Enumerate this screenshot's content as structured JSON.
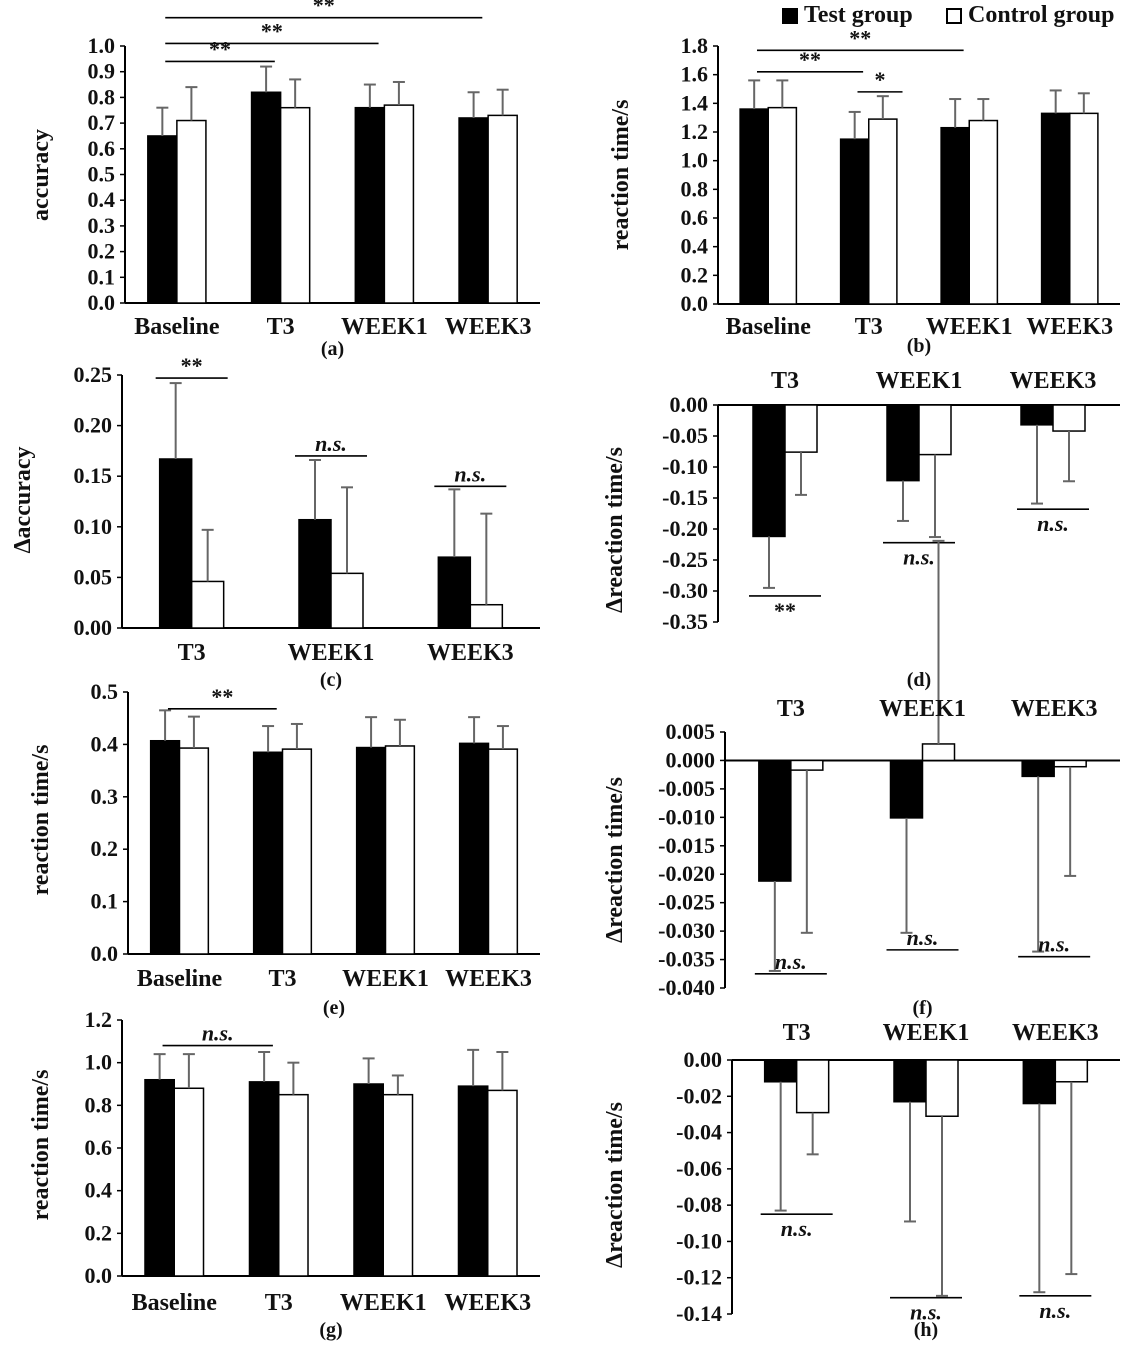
{
  "legend": {
    "test_label": "Test group",
    "control_label": "Control group",
    "test_color": "#000000",
    "control_color": "#ffffff"
  },
  "chart_data": [
    {
      "id": "a",
      "panel_label": "(a)",
      "type": "bar",
      "ylabel": "accuracy",
      "ylim": [
        0,
        1.0
      ],
      "yticks": [
        "0.0",
        "0.1",
        "0.2",
        "0.3",
        "0.4",
        "0.5",
        "0.6",
        "0.7",
        "0.8",
        "0.9",
        "1.0"
      ],
      "categories": [
        "Baseline",
        "T3",
        "WEEK1",
        "WEEK3"
      ],
      "series": [
        {
          "name": "Test group",
          "values": [
            0.65,
            0.82,
            0.76,
            0.72
          ],
          "errors": [
            0.11,
            0.1,
            0.09,
            0.1
          ]
        },
        {
          "name": "Control group",
          "values": [
            0.71,
            0.76,
            0.77,
            0.73
          ],
          "errors": [
            0.13,
            0.11,
            0.09,
            0.1
          ]
        }
      ],
      "annotations": [
        {
          "text": "**",
          "from": "Baseline",
          "to": "WEEK3",
          "y": 1.11
        },
        {
          "text": "**",
          "from": "Baseline",
          "to": "WEEK1",
          "y": 1.01
        },
        {
          "text": "**",
          "from": "Baseline",
          "to": "T3",
          "y": 0.94
        }
      ]
    },
    {
      "id": "b",
      "panel_label": "(b)",
      "type": "bar",
      "ylabel": "reaction time/s",
      "ylim": [
        0,
        1.8
      ],
      "yticks": [
        "0.0",
        "0.2",
        "0.4",
        "0.6",
        "0.8",
        "1.0",
        "1.2",
        "1.4",
        "1.6",
        "1.8"
      ],
      "categories": [
        "Baseline",
        "T3",
        "WEEK1",
        "WEEK3"
      ],
      "series": [
        {
          "name": "Test group",
          "values": [
            1.36,
            1.15,
            1.23,
            1.33
          ],
          "errors": [
            0.2,
            0.19,
            0.2,
            0.16
          ]
        },
        {
          "name": "Control group",
          "values": [
            1.37,
            1.29,
            1.28,
            1.33
          ],
          "errors": [
            0.19,
            0.16,
            0.15,
            0.14
          ]
        }
      ],
      "annotations": [
        {
          "text": "**",
          "from": "Baseline",
          "to": "WEEK1",
          "y": 1.77
        },
        {
          "text": "**",
          "from": "Baseline",
          "to": "T3",
          "y": 1.62
        },
        {
          "text": "*",
          "from": "T3",
          "to": "T3",
          "y": 1.48
        }
      ]
    },
    {
      "id": "c",
      "panel_label": "(c)",
      "type": "bar",
      "ylabel": "Δaccuracy",
      "ylim": [
        0,
        0.25
      ],
      "yticks": [
        "0.00",
        "0.05",
        "0.10",
        "0.15",
        "0.20",
        "0.25"
      ],
      "categories": [
        "T3",
        "WEEK1",
        "WEEK3"
      ],
      "series": [
        {
          "name": "Test group",
          "values": [
            0.167,
            0.107,
            0.07
          ],
          "errors": [
            0.075,
            0.059,
            0.067
          ]
        },
        {
          "name": "Control group",
          "values": [
            0.046,
            0.054,
            0.023
          ],
          "errors": [
            0.051,
            0.085,
            0.09
          ]
        }
      ],
      "annotations": [
        {
          "text": "**",
          "cat": "T3",
          "y": 0.247
        },
        {
          "text": "n.s.",
          "cat": "WEEK1",
          "y": 0.17,
          "italic": true
        },
        {
          "text": "n.s.",
          "cat": "WEEK3",
          "y": 0.14,
          "italic": true
        }
      ]
    },
    {
      "id": "d",
      "panel_label": "(d)",
      "type": "bar",
      "ylabel": "Δreaction time/s",
      "ylim": [
        -0.35,
        0.0
      ],
      "xaxis_top": true,
      "yticks": [
        "0.00",
        "-0.05",
        "-0.10",
        "-0.15",
        "-0.20",
        "-0.25",
        "-0.30",
        "-0.35"
      ],
      "categories": [
        "T3",
        "WEEK1",
        "WEEK3"
      ],
      "series": [
        {
          "name": "Test group",
          "values": [
            -0.212,
            -0.122,
            -0.032
          ],
          "errors": [
            0.083,
            0.065,
            0.127
          ]
        },
        {
          "name": "Control group",
          "values": [
            -0.076,
            -0.08,
            -0.042
          ],
          "errors": [
            0.069,
            0.133,
            0.081
          ]
        }
      ],
      "annotations": [
        {
          "text": "**",
          "cat": "T3",
          "y": -0.308
        },
        {
          "text": "n.s.",
          "cat": "WEEK1",
          "y": -0.222,
          "italic": true
        },
        {
          "text": "n.s.",
          "cat": "WEEK3",
          "y": -0.168,
          "italic": true
        }
      ]
    },
    {
      "id": "e",
      "panel_label": "(e)",
      "type": "bar",
      "ylabel": "reaction time/s",
      "ylim": [
        0,
        0.5
      ],
      "yticks": [
        "0.0",
        "0.1",
        "0.2",
        "0.3",
        "0.4",
        "0.5"
      ],
      "categories": [
        "Baseline",
        "T3",
        "WEEK1",
        "WEEK3"
      ],
      "series": [
        {
          "name": "Test group",
          "values": [
            0.407,
            0.385,
            0.394,
            0.402
          ],
          "errors": [
            0.058,
            0.05,
            0.058,
            0.05
          ]
        },
        {
          "name": "Control group",
          "values": [
            0.393,
            0.391,
            0.397,
            0.391
          ],
          "errors": [
            0.06,
            0.048,
            0.05,
            0.044
          ]
        }
      ],
      "annotations": [
        {
          "text": "**",
          "from": "Baseline",
          "to": "T3",
          "y": 0.468
        }
      ]
    },
    {
      "id": "f",
      "panel_label": "(f)",
      "type": "bar",
      "ylabel": "Δreaction time/s",
      "ylim": [
        -0.04,
        0.005
      ],
      "xaxis_top": true,
      "yticks": [
        "0.005",
        "0.000",
        "-0.005",
        "-0.010",
        "-0.015",
        "-0.020",
        "-0.025",
        "-0.030",
        "-0.035",
        "-0.040"
      ],
      "categories": [
        "T3",
        "WEEK1",
        "WEEK3"
      ],
      "series": [
        {
          "name": "Test group",
          "values": [
            -0.0212,
            -0.0101,
            -0.0028
          ],
          "errors": [
            0.0158,
            0.0202,
            0.0308
          ]
        },
        {
          "name": "Control group",
          "values": [
            -0.0017,
            0.0029,
            -0.0011
          ],
          "errors": [
            0.0286,
            0.0357,
            0.0192
          ]
        }
      ],
      "annotations": [
        {
          "text": "n.s.",
          "cat": "T3",
          "y": -0.0375,
          "italic": true
        },
        {
          "text": "n.s.",
          "cat": "WEEK1",
          "y": -0.0333,
          "italic": true
        },
        {
          "text": "n.s.",
          "cat": "WEEK3",
          "y": -0.0345,
          "italic": true
        }
      ]
    },
    {
      "id": "g",
      "panel_label": "(g)",
      "type": "bar",
      "ylabel": "reaction time/s",
      "ylim": [
        0,
        1.2
      ],
      "yticks": [
        "0.0",
        "0.2",
        "0.4",
        "0.6",
        "0.8",
        "1.0",
        "1.2"
      ],
      "categories": [
        "Baseline",
        "T3",
        "WEEK1",
        "WEEK3"
      ],
      "series": [
        {
          "name": "Test group",
          "values": [
            0.92,
            0.91,
            0.9,
            0.89
          ],
          "errors": [
            0.12,
            0.14,
            0.12,
            0.17
          ]
        },
        {
          "name": "Control group",
          "values": [
            0.88,
            0.85,
            0.85,
            0.87
          ],
          "errors": [
            0.16,
            0.15,
            0.09,
            0.18
          ]
        }
      ],
      "annotations": [
        {
          "text": "n.s.",
          "from": "Baseline",
          "to": "T3",
          "y": 1.08,
          "italic": true
        }
      ]
    },
    {
      "id": "h",
      "panel_label": "(h)",
      "type": "bar",
      "ylabel": "Δreaction time/s",
      "ylim": [
        -0.14,
        0.0
      ],
      "xaxis_top": true,
      "yticks": [
        "0.00",
        "-0.02",
        "-0.04",
        "-0.06",
        "-0.08",
        "-0.10",
        "-0.12",
        "-0.14"
      ],
      "categories": [
        "T3",
        "WEEK1",
        "WEEK3"
      ],
      "series": [
        {
          "name": "Test group",
          "values": [
            -0.012,
            -0.023,
            -0.024
          ],
          "errors": [
            0.071,
            0.066,
            0.104
          ]
        },
        {
          "name": "Control group",
          "values": [
            -0.029,
            -0.031,
            -0.012
          ],
          "errors": [
            0.023,
            0.099,
            0.106
          ]
        }
      ],
      "annotations": [
        {
          "text": "n.s.",
          "cat": "T3",
          "y": -0.085,
          "italic": true
        },
        {
          "text": "n.s.",
          "cat": "WEEK1",
          "y": -0.131,
          "italic": true
        },
        {
          "text": "n.s.",
          "cat": "WEEK3",
          "y": -0.13,
          "italic": true
        }
      ]
    }
  ]
}
